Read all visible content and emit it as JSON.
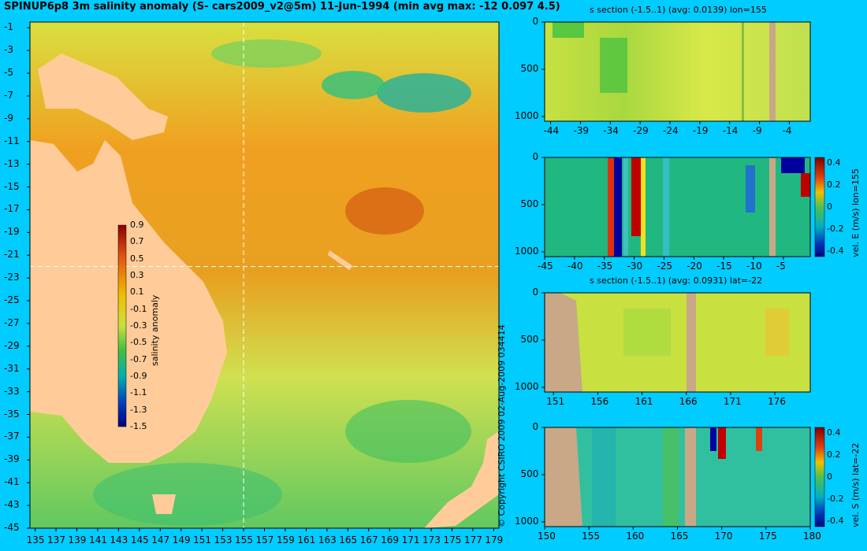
{
  "title": "SPINUP6p8 3m salinity anomaly (S- cars2009_v2@5m) 11-Jun-1994 (min avg max: -12 0.097 4.5)",
  "copyright": "© Copyright CSIRO 2009   02-Aug-2009 034414",
  "colors": {
    "background": "#00ccff",
    "land_map": "#ffcc99",
    "land_section": "#c8a887"
  },
  "chart_data": [
    {
      "type": "heatmap",
      "name": "map",
      "title": "SPINUP6p8 3m salinity anomaly (S- cars2009_v2@5m) 11-Jun-1994 (min avg max: -12 0.097 4.5)",
      "x_ticks": [
        "135",
        "137",
        "139",
        "141",
        "143",
        "145",
        "147",
        "149",
        "151",
        "153",
        "155",
        "157",
        "159",
        "161",
        "163",
        "165",
        "167",
        "169",
        "171",
        "173",
        "175",
        "177",
        "179"
      ],
      "y_ticks": [
        "-1",
        "-3",
        "-5",
        "-7",
        "-9",
        "-11",
        "-13",
        "-15",
        "-17",
        "-19",
        "-21",
        "-23",
        "-25",
        "-27",
        "-29",
        "-31",
        "-33",
        "-35",
        "-37",
        "-39",
        "-41",
        "-43",
        "-45"
      ],
      "xlim": [
        134.5,
        179.5
      ],
      "ylim": [
        -45,
        -0.5
      ],
      "section_lines": {
        "lon": 155,
        "lat": -22
      },
      "colorbar": {
        "label": "salinity anomaly",
        "ticks": [
          "0.9",
          "0.7",
          "0.5",
          "0.3",
          "0.1",
          "-0.1",
          "-0.3",
          "-0.5",
          "-0.7",
          "-0.9",
          "-1.1",
          "-1.3",
          "-1.5"
        ],
        "range": [
          -1.5,
          0.9
        ]
      }
    },
    {
      "type": "heatmap",
      "name": "s-section-lon",
      "title": "s section (-1.5..1) (avg: 0.0139) lon=155",
      "x_ticks": [
        "-44",
        "-39",
        "-34",
        "-29",
        "-24",
        "-19",
        "-14",
        "-9",
        "-4"
      ],
      "y_ticks": [
        "0",
        "500",
        "1000"
      ],
      "xlim": [
        -45,
        -0.5
      ],
      "ylim": [
        1050,
        0
      ]
    },
    {
      "type": "heatmap",
      "name": "vel-e-section",
      "title": "",
      "x_ticks": [
        "-45",
        "-40",
        "-35",
        "-30",
        "-25",
        "-20",
        "-15",
        "-10",
        "-5"
      ],
      "y_ticks": [
        "0",
        "500",
        "1000"
      ],
      "xlim": [
        -45,
        -0.5
      ],
      "ylim": [
        1050,
        0
      ],
      "colorbar": {
        "label": "vel. E (m/s) lon=155",
        "ticks": [
          "0.4",
          "0.2",
          "0",
          "-0.2",
          "-0.4"
        ],
        "range": [
          -0.45,
          0.45
        ]
      }
    },
    {
      "type": "heatmap",
      "name": "s-section-lat",
      "title": "s section (-1.5..1) (avg: 0.0931) lat=-22",
      "x_ticks": [
        "151",
        "156",
        "161",
        "166",
        "171",
        "176"
      ],
      "y_ticks": [
        "0",
        "500",
        "1000"
      ],
      "xlim": [
        150,
        180
      ],
      "ylim": [
        1050,
        0
      ]
    },
    {
      "type": "heatmap",
      "name": "vel-s-section",
      "title": "",
      "x_ticks": [
        "150",
        "160",
        "165",
        "170",
        "175",
        "180"
      ],
      "x_tick_values": [
        150,
        155,
        160,
        165,
        170,
        175,
        180
      ],
      "x_labels_all": [
        "150",
        "155",
        "160",
        "165",
        "170",
        "175",
        "180"
      ],
      "y_ticks": [
        "0",
        "500",
        "1000"
      ],
      "xlim": [
        150,
        180
      ],
      "ylim": [
        1050,
        0
      ],
      "colorbar": {
        "label": "vel. S (m/s) lat=-22",
        "ticks": [
          "0.4",
          "0.2",
          "0",
          "-0.2",
          "-0.4"
        ],
        "range": [
          -0.45,
          0.45
        ]
      }
    }
  ]
}
